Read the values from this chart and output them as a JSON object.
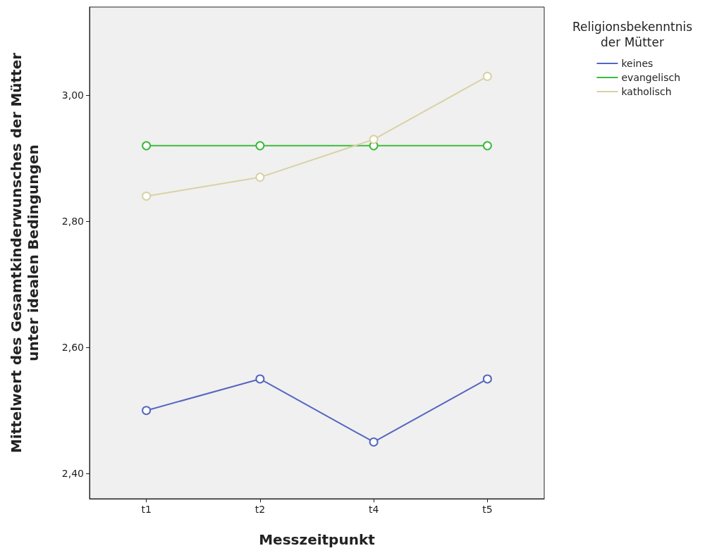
{
  "chart_data": {
    "type": "line",
    "xlabel": "Messzeitpunkt",
    "ylabel": "Mittelwert des Gesamtkinderwunsches der Mütter\nunter idealen Bedingungen",
    "legend_title": "Religionsbekenntnis\nder Mütter",
    "categories": [
      "t1",
      "t2",
      "t4",
      "t5"
    ],
    "series": [
      {
        "name": "keines",
        "color": "#5566c0",
        "values": [
          2.5,
          2.55,
          2.45,
          2.55
        ]
      },
      {
        "name": "evangelisch",
        "color": "#3cba3c",
        "values": [
          2.92,
          2.92,
          2.92,
          2.92
        ]
      },
      {
        "name": "katholisch",
        "color": "#d8d2a4",
        "values": [
          2.84,
          2.87,
          2.93,
          3.03
        ]
      }
    ],
    "ylim": [
      2.36,
      3.14
    ],
    "yticks": [
      {
        "value": 2.4,
        "label": "2,40"
      },
      {
        "value": 2.6,
        "label": "2,60"
      },
      {
        "value": 2.8,
        "label": "2,80"
      },
      {
        "value": 3.0,
        "label": "3,00"
      }
    ],
    "grid": false,
    "legend": "top right",
    "marker": "circle",
    "line_style": "solid"
  }
}
